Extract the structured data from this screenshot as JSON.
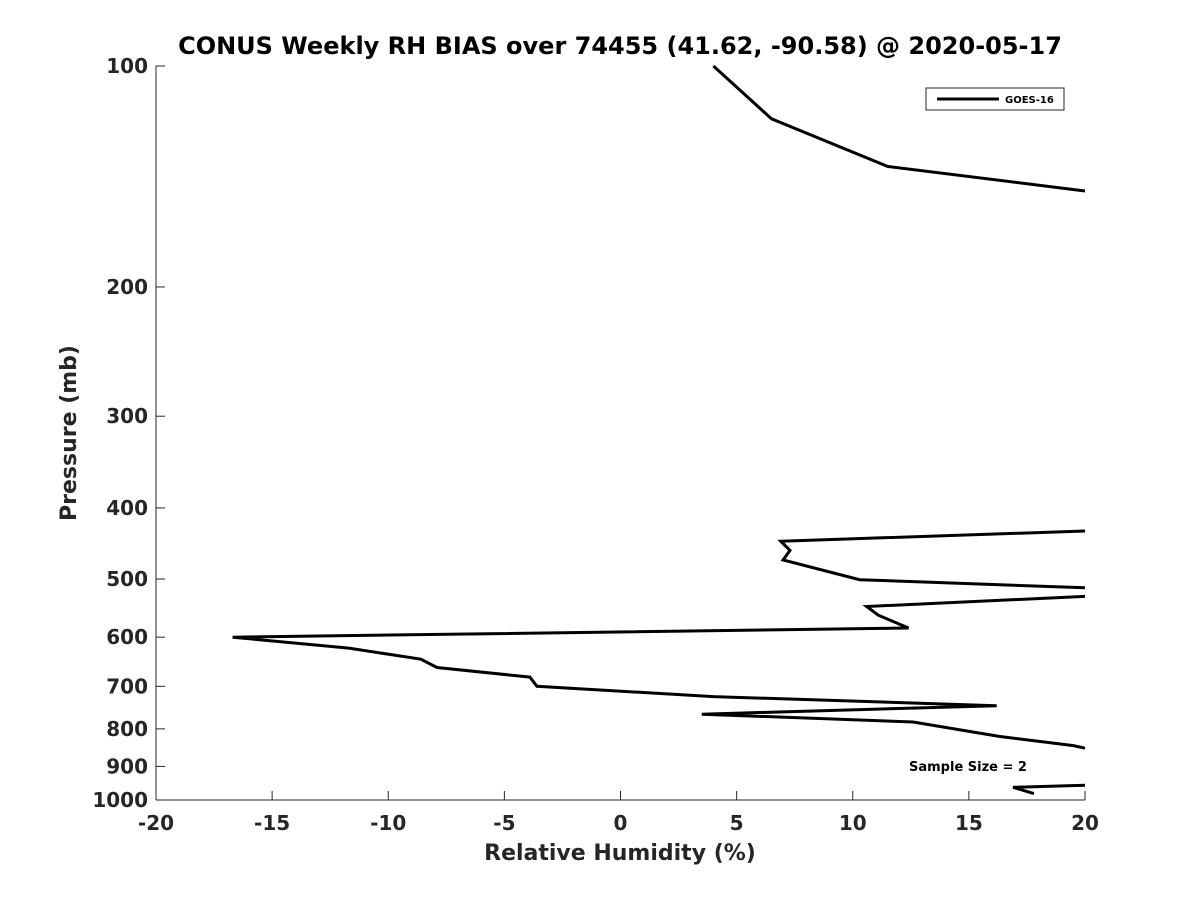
{
  "chart_data": {
    "type": "line",
    "title": "CONUS Weekly RH BIAS over 74455 (41.62, -90.58) @ 2020-05-17",
    "xlabel": "Relative Humidity (%)",
    "ylabel": "Pressure (mb)",
    "xlim": [
      -20,
      20
    ],
    "ylim": [
      100,
      1000
    ],
    "yscale": "log",
    "y_reversed": true,
    "x_ticks": [
      -20,
      -15,
      -10,
      -5,
      0,
      5,
      10,
      15,
      20
    ],
    "y_ticks": [
      100,
      200,
      300,
      400,
      500,
      600,
      700,
      800,
      900,
      1000
    ],
    "grid": false,
    "legend_position": "top-right",
    "annotation": "Sample Size = 2",
    "series": [
      {
        "name": "GOES-16",
        "color": "#000000",
        "points": [
          [
            4.0,
            100
          ],
          [
            6.5,
            118
          ],
          [
            11.5,
            137
          ],
          [
            20.0,
            148
          ],
          [
            null,
            null
          ],
          [
            20.0,
            430
          ],
          [
            6.9,
            444
          ],
          [
            7.3,
            457
          ],
          [
            7.0,
            471
          ],
          [
            10.3,
            501
          ],
          [
            20.0,
            514
          ],
          [
            null,
            null
          ],
          [
            20.0,
            528
          ],
          [
            10.6,
            545
          ],
          [
            11.1,
            560
          ],
          [
            12.4,
            583
          ],
          [
            -16.7,
            600
          ],
          [
            -11.7,
            621
          ],
          [
            -8.6,
            643
          ],
          [
            -7.9,
            660
          ],
          [
            -3.9,
            680
          ],
          [
            -3.6,
            700
          ],
          [
            4.0,
            723
          ],
          [
            16.2,
            744
          ],
          [
            3.5,
            764
          ],
          [
            12.6,
            783
          ],
          [
            16.3,
            819
          ],
          [
            19.5,
            843
          ],
          [
            20.0,
            850
          ],
          [
            null,
            null
          ],
          [
            20.0,
            955
          ],
          [
            16.9,
            961
          ],
          [
            17.8,
            980
          ]
        ]
      }
    ]
  }
}
